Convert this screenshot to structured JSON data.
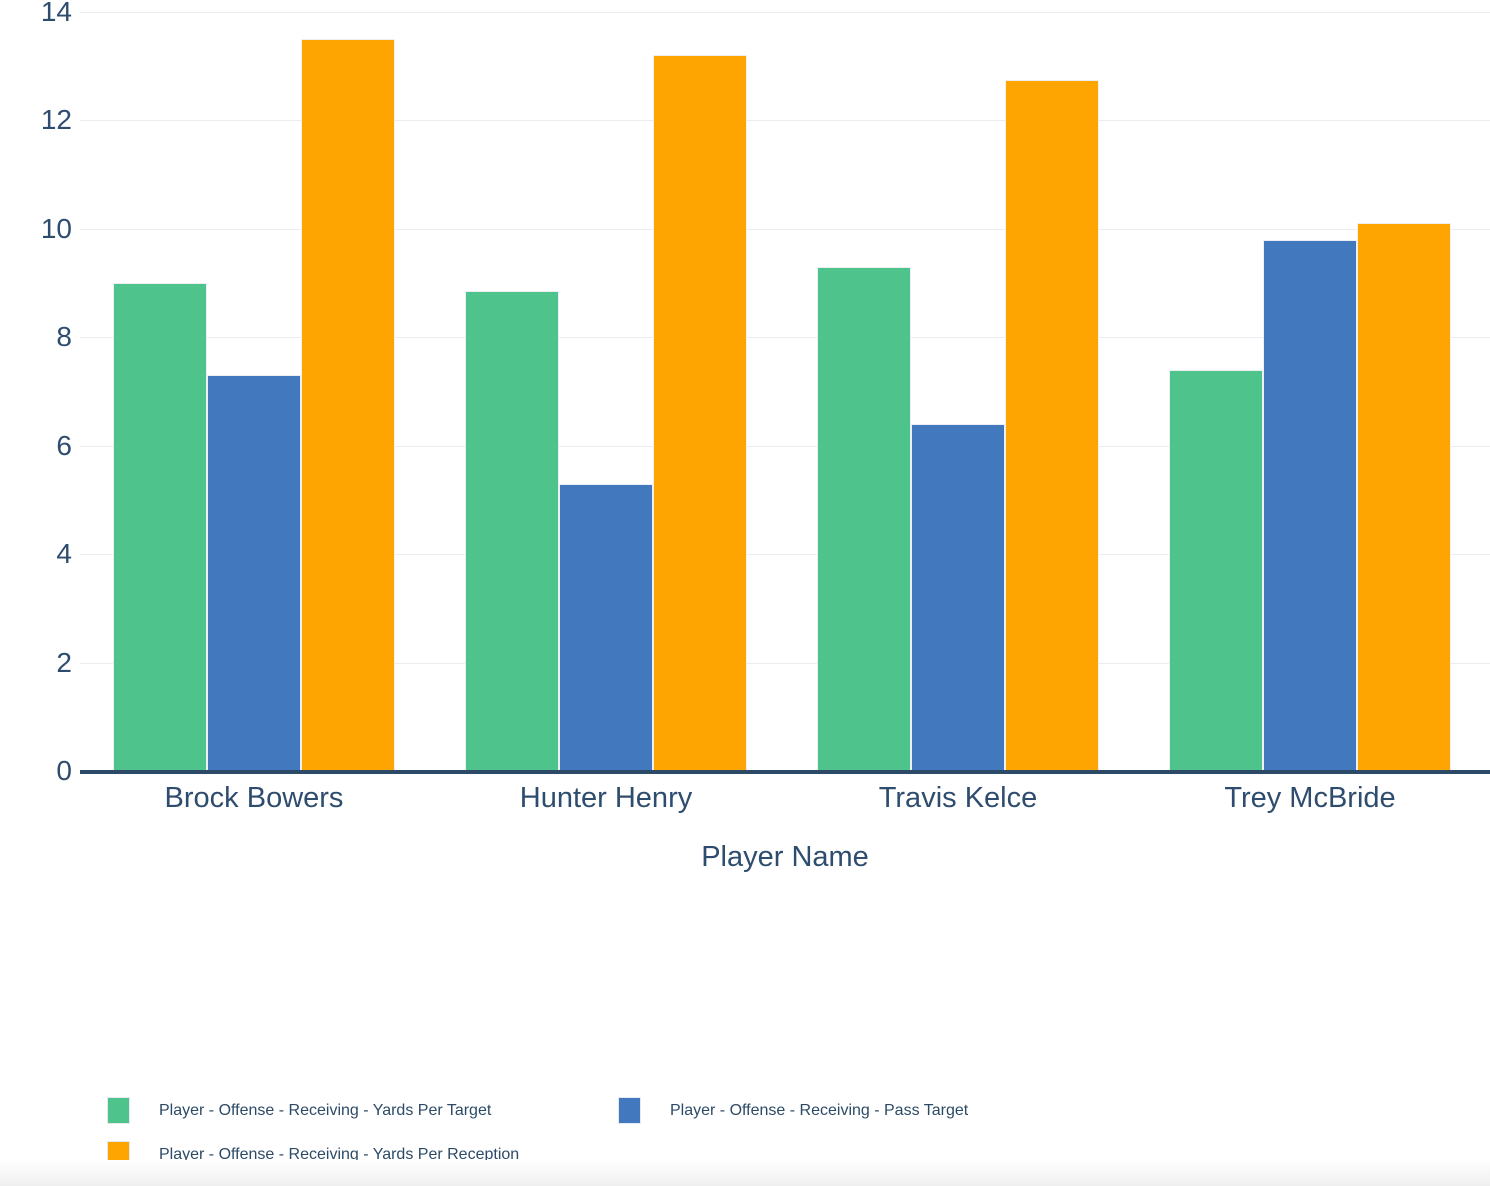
{
  "chart_data": {
    "type": "bar",
    "categories": [
      "Brock Bowers",
      "Hunter Henry",
      "Travis Kelce",
      "Trey McBride"
    ],
    "series": [
      {
        "name": "Player - Offense - Receiving - Yards Per Target",
        "color": "#4EC38C",
        "values": [
          9.0,
          8.85,
          9.3,
          7.4
        ]
      },
      {
        "name": "Player - Offense - Receiving - Pass Target",
        "color": "#4178BE",
        "values": [
          7.3,
          5.3,
          6.4,
          9.8
        ]
      },
      {
        "name": "Player - Offense - Receiving - Yards Per Reception",
        "color": "#FFA502",
        "values": [
          13.5,
          13.2,
          12.75,
          10.1
        ]
      }
    ],
    "title": "",
    "xlabel": "Player Name",
    "ylabel": "",
    "ylim": [
      0,
      14
    ],
    "yticks": [
      0,
      2,
      4,
      6,
      8,
      10,
      12,
      14
    ],
    "grid": true,
    "legend_position": "bottom"
  },
  "colors": {
    "axis_text": "#2E4D6E",
    "axis_line": "#2C4A66",
    "gridline": "#E9EDF2",
    "background": "#FFFFFF"
  }
}
